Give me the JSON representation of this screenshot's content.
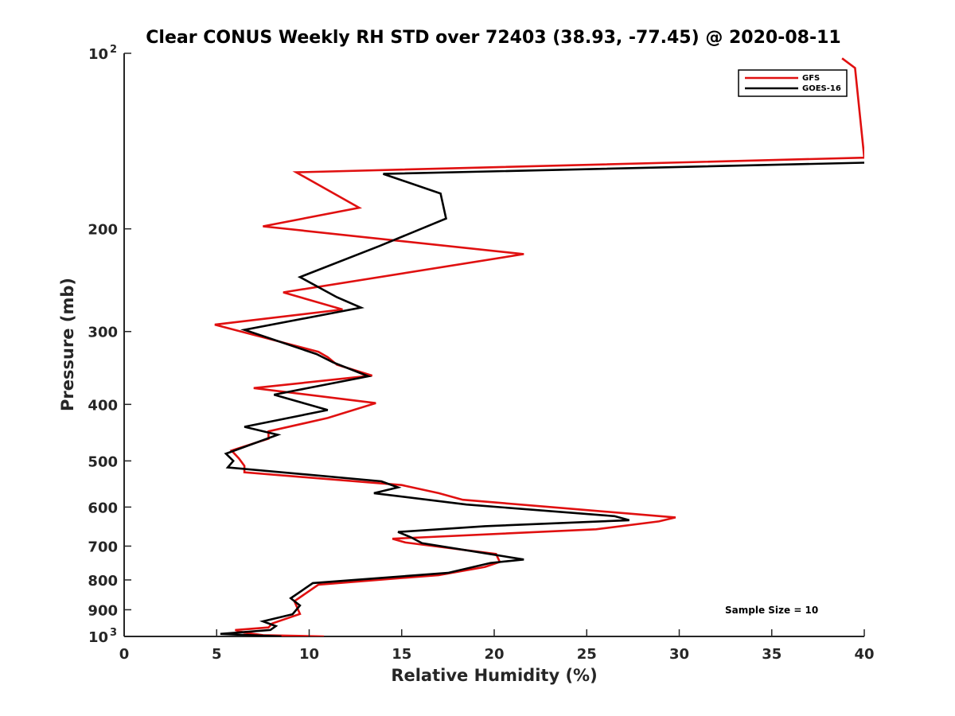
{
  "chart_data": {
    "type": "line",
    "title": "Clear CONUS Weekly RH STD over 72403 (38.93, -77.45) @ 2020-08-11",
    "xlabel": "Relative Humidity (%)",
    "ylabel": "Pressure (mb)",
    "xlim": [
      0,
      40
    ],
    "ylim": [
      100,
      1000
    ],
    "y_scale": "log",
    "y_reversed": true,
    "grid": false,
    "legend_position": "top-right",
    "x_ticks": [
      "0",
      "5",
      "10",
      "15",
      "20",
      "25",
      "30",
      "35",
      "40"
    ],
    "y_ticks": [
      {
        "value": 100,
        "label": "10",
        "sup": "2"
      },
      {
        "value": 200,
        "label": "200",
        "sup": ""
      },
      {
        "value": 300,
        "label": "300",
        "sup": ""
      },
      {
        "value": 400,
        "label": "400",
        "sup": ""
      },
      {
        "value": 500,
        "label": "500",
        "sup": ""
      },
      {
        "value": 600,
        "label": "600",
        "sup": ""
      },
      {
        "value": 700,
        "label": "700",
        "sup": ""
      },
      {
        "value": 800,
        "label": "800",
        "sup": ""
      },
      {
        "value": 900,
        "label": "900",
        "sup": ""
      },
      {
        "value": 1000,
        "label": "10",
        "sup": "3"
      }
    ],
    "annotation": "Sample Size = 10",
    "series": [
      {
        "name": "GFS",
        "color": "#e01010",
        "points": [
          [
            10.8,
            1000
          ],
          [
            7.5,
            995
          ],
          [
            6.5,
            985
          ],
          [
            6.0,
            975
          ],
          [
            7.8,
            965
          ],
          [
            8.0,
            950
          ],
          [
            9.5,
            915
          ],
          [
            9.2,
            870
          ],
          [
            10.5,
            815
          ],
          [
            17.0,
            785
          ],
          [
            19.5,
            760
          ],
          [
            20.3,
            745
          ],
          [
            20.1,
            722
          ],
          [
            15.2,
            690
          ],
          [
            14.5,
            680
          ],
          [
            25.5,
            655
          ],
          [
            28.9,
            635
          ],
          [
            29.8,
            625
          ],
          [
            18.3,
            583
          ],
          [
            17.0,
            568
          ],
          [
            15.0,
            550
          ],
          [
            6.5,
            523
          ],
          [
            6.5,
            510
          ],
          [
            6.2,
            495
          ],
          [
            5.8,
            480
          ],
          [
            7.8,
            458
          ],
          [
            7.8,
            445
          ],
          [
            11.0,
            422
          ],
          [
            13.6,
            398
          ],
          [
            7.0,
            375
          ],
          [
            13.4,
            357
          ],
          [
            11.5,
            342
          ],
          [
            11.0,
            332
          ],
          [
            10.5,
            325
          ],
          [
            4.9,
            292
          ],
          [
            11.8,
            275
          ],
          [
            8.6,
            257
          ],
          [
            21.6,
            221
          ],
          [
            7.5,
            198
          ],
          [
            12.7,
            184
          ],
          [
            9.3,
            160
          ],
          [
            40.0,
            151
          ],
          [
            39.5,
            106
          ],
          [
            38.8,
            102
          ]
        ]
      },
      {
        "name": "GOES-16",
        "color": "#000000",
        "points": [
          [
            8.5,
            1000
          ],
          [
            5.2,
            990
          ],
          [
            7.9,
            975
          ],
          [
            8.2,
            960
          ],
          [
            7.5,
            942
          ],
          [
            9.1,
            916
          ],
          [
            9.5,
            885
          ],
          [
            9.0,
            860
          ],
          [
            10.2,
            810
          ],
          [
            17.5,
            778
          ],
          [
            19.8,
            748
          ],
          [
            21.6,
            738
          ],
          [
            16.1,
            692
          ],
          [
            15.5,
            676
          ],
          [
            14.8,
            662
          ],
          [
            19.5,
            647
          ],
          [
            27.3,
            632
          ],
          [
            26.5,
            622
          ],
          [
            18.5,
            594
          ],
          [
            13.5,
            568
          ],
          [
            14.8,
            555
          ],
          [
            13.9,
            542
          ],
          [
            5.6,
            513
          ],
          [
            5.9,
            500
          ],
          [
            5.5,
            486
          ],
          [
            8.3,
            451
          ],
          [
            6.5,
            437
          ],
          [
            11.0,
            409
          ],
          [
            8.1,
            385
          ],
          [
            13.2,
            358
          ],
          [
            11.3,
            339
          ],
          [
            10.4,
            328
          ],
          [
            6.5,
            298
          ],
          [
            12.8,
            273
          ],
          [
            11.5,
            262
          ],
          [
            9.5,
            242
          ],
          [
            13.8,
            214
          ],
          [
            17.4,
            192
          ],
          [
            17.1,
            174
          ],
          [
            14.0,
            161
          ],
          [
            40.0,
            154
          ]
        ]
      }
    ]
  }
}
